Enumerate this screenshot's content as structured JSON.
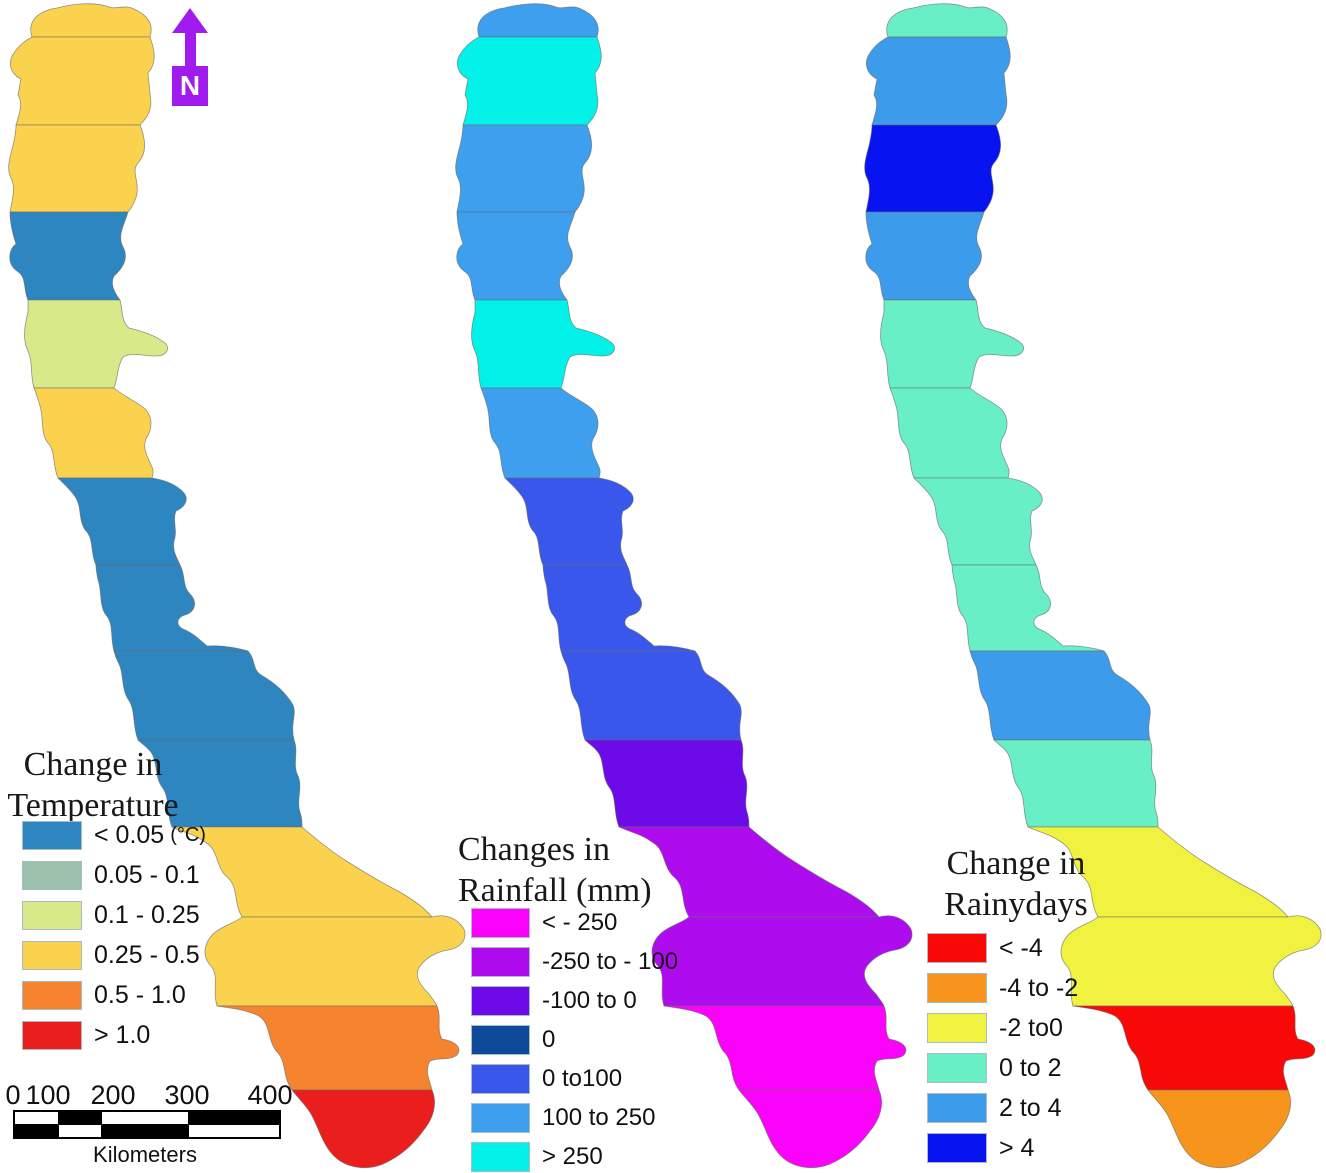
{
  "figure": {
    "background": "#FFFFFF"
  },
  "north_arrow": {
    "label": "N",
    "color": "#A21BEE"
  },
  "scale_bar": {
    "tick_labels": [
      "0",
      "100",
      "200",
      "300",
      "400"
    ],
    "unit_label": "Kilometers"
  },
  "maps": [
    {
      "id": "temperature",
      "legend_title_lines": [
        "Change in",
        "Temperature"
      ],
      "classes": [
        {
          "label": "< 0.05",
          "suffix": "(°C)",
          "color": "#2E86C1"
        },
        {
          "label": "0.05 - 0.1",
          "color": "#9CC2AE"
        },
        {
          "label": "0.1 - 0.25",
          "color": "#D7E989"
        },
        {
          "label": "0.25 - 0.5",
          "color": "#FBD24E"
        },
        {
          "label": "0.5 - 1.0",
          "color": "#F6832E"
        },
        {
          "label": "> 1.0",
          "color": "#EB1E1E"
        }
      ],
      "district_class_indices": [
        3,
        3,
        3,
        0,
        2,
        3,
        0,
        0,
        0,
        0,
        3,
        3,
        4,
        5
      ]
    },
    {
      "id": "rainfall",
      "legend_title_lines": [
        "Changes in",
        "Rainfall (mm)"
      ],
      "classes": [
        {
          "label": "< - 250",
          "color": "#FB02FB"
        },
        {
          "label": "-250 to - 100",
          "color": "#AE0BEF"
        },
        {
          "label": "-100 to 0",
          "color": "#6D0BE8"
        },
        {
          "label": "0",
          "color": "#0D4A99"
        },
        {
          "label": "0 to100",
          "color": "#3A57EB"
        },
        {
          "label": "100 to 250",
          "color": "#3E9FEF"
        },
        {
          "label": "> 250",
          "color": "#02F2EA"
        }
      ],
      "district_class_indices": [
        5,
        6,
        5,
        5,
        6,
        5,
        4,
        4,
        4,
        2,
        1,
        1,
        0,
        0
      ]
    },
    {
      "id": "rainydays",
      "legend_title_lines": [
        "Change in",
        "Rainydays"
      ],
      "classes": [
        {
          "label": "< -4",
          "color": "#F90808"
        },
        {
          "label": "-4 to -2",
          "color": "#F7941C"
        },
        {
          "label": "-2 to0",
          "color": "#F0F23F"
        },
        {
          "label": "0 to 2",
          "color": "#68EFC6"
        },
        {
          "label": "2 to 4",
          "color": "#3D9BEB"
        },
        {
          "label": "> 4",
          "color": "#0813F1"
        }
      ],
      "district_class_indices": [
        3,
        4,
        5,
        4,
        3,
        3,
        3,
        3,
        4,
        3,
        2,
        2,
        0,
        1
      ]
    }
  ]
}
